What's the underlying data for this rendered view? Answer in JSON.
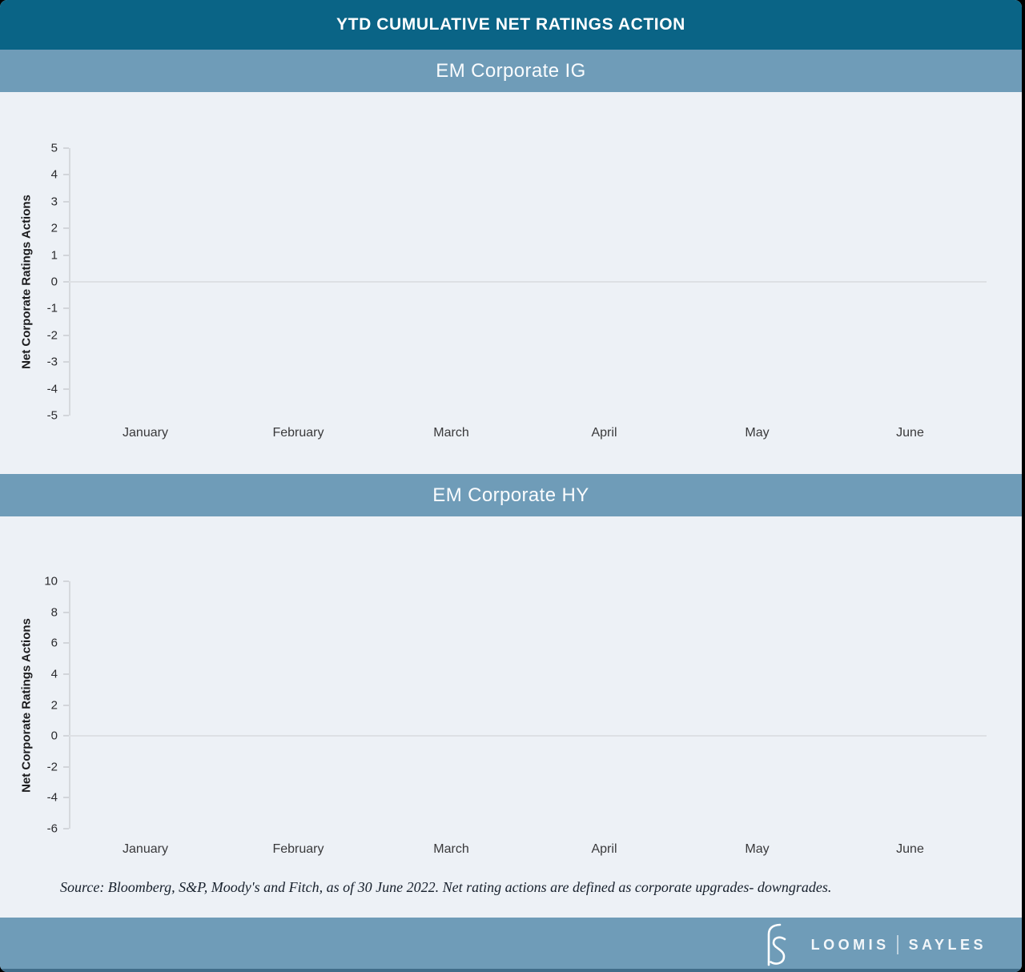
{
  "header": {
    "title": "YTD CUMULATIVE NET RATINGS ACTION"
  },
  "source_note": "Source: Bloomberg, S&P, Moody's and Fitch, as of 30 June 2022. Net rating actions are defined as corporate upgrades- downgrades.",
  "footer": {
    "logo_icon": "loomis-sayles-ls-monogram-icon",
    "brand_first": "LOOMIS",
    "brand_second": "SAYLES"
  },
  "colors": {
    "titlebar_bg": "#0a6486",
    "band_bg": "#6f9cb8",
    "footer_bg": "#6f9cb8",
    "footer_edge": "#416d8a",
    "chart_bg": "#edf1f6",
    "axis_line": "#d6d9dd",
    "zero_line": "#dde0e4",
    "tick_text": "#2b2b2e",
    "title_text": "#ffffff",
    "band_text": "#fafcfe"
  },
  "chart_data": [
    {
      "type": "line",
      "title": "EM Corporate IG",
      "ylabel": "Net Corporate Ratings Actions",
      "xlabel": "",
      "categories": [
        "January",
        "February",
        "March",
        "April",
        "May",
        "June"
      ],
      "ylim": [
        -5,
        5
      ],
      "yticks": [
        5,
        4,
        3,
        2,
        1,
        0,
        -1,
        -2,
        -3,
        -4,
        -5
      ],
      "series": [],
      "grid": "zero-baseline-only",
      "legend": "none"
    },
    {
      "type": "line",
      "title": "EM Corporate HY",
      "ylabel": "Net Corporate Ratings Actions",
      "xlabel": "",
      "categories": [
        "January",
        "February",
        "March",
        "April",
        "May",
        "June"
      ],
      "ylim": [
        -6,
        10
      ],
      "yticks": [
        10,
        8,
        6,
        4,
        2,
        0,
        -2,
        -4,
        -6
      ],
      "series": [],
      "grid": "zero-baseline-only",
      "legend": "none"
    }
  ]
}
